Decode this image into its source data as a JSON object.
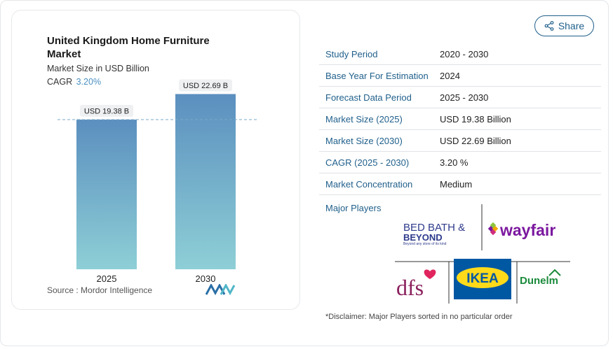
{
  "chart": {
    "title": "United Kingdom Home Furniture Market",
    "subtitle": "Market Size in USD Billion",
    "cagr_label": "CAGR",
    "cagr_value": "3.20%",
    "source": "Source :  Mordor Intelligence"
  },
  "chart_data": {
    "type": "bar",
    "categories": [
      "2025",
      "2030"
    ],
    "values": [
      19.38,
      22.69
    ],
    "data_labels": [
      "USD 19.38 B",
      "USD 22.69 B"
    ],
    "title": "United Kingdom Home Furniture Market",
    "subtitle": "Market Size in USD Billion",
    "xlabel": "",
    "ylabel": "",
    "ylim": [
      0,
      24
    ],
    "grid": false,
    "reference_line": "dashed line at 2025 value",
    "colors": {
      "bar_top": "#5b8fbf",
      "bar_bottom": "#8ecfd6"
    }
  },
  "share": {
    "label": "Share",
    "icon": "share-icon"
  },
  "info": {
    "rows": [
      {
        "key": "Study Period",
        "value": "2020 - 2030"
      },
      {
        "key": "Base Year For Estimation",
        "value": "2024"
      },
      {
        "key": "Forecast Data Period",
        "value": "2025 - 2030"
      },
      {
        "key": "Market Size (2025)",
        "value": "USD 19.38 Billion"
      },
      {
        "key": "Market Size (2030)",
        "value": "USD 22.69 Billion"
      },
      {
        "key": "CAGR (2025 - 2030)",
        "value": "3.20 %"
      },
      {
        "key": "Market Concentration",
        "value": "Medium"
      }
    ]
  },
  "players": {
    "label": "Major Players",
    "logos": {
      "bbb_line1": "BED BATH &",
      "bbb_line2": "BEYOND",
      "bbb_tag": "Beyond any store of its kind",
      "wayfair": "wayfair",
      "dfs": "dfs",
      "ikea": "IKEA",
      "dunelm": "Dunelm"
    }
  },
  "disclaimer": "*Disclaimer: Major Players sorted in no particular order",
  "colors": {
    "accent": "#1f5f8b",
    "cagr": "#4a90c2"
  }
}
